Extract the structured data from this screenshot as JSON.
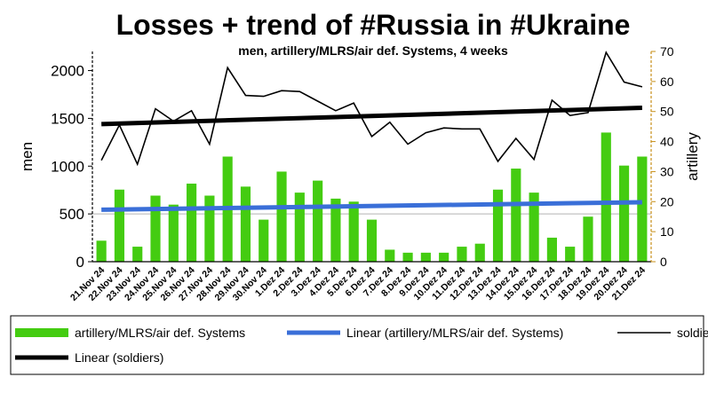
{
  "chart_data": {
    "type": "bar",
    "title": "Losses + trend of #Russia in #Ukraine",
    "subtitle": "men, artillery/MLRS/air def. Systems, 4 weeks",
    "ylabel": "men",
    "y2label": "artillery",
    "ylim": [
      0,
      2200
    ],
    "y2lim": [
      0,
      70
    ],
    "yticks": [
      0,
      500,
      1000,
      1500,
      2000
    ],
    "y2ticks": [
      0,
      10,
      20,
      30,
      40,
      50,
      60,
      70
    ],
    "grid": "horizontal at 500",
    "legend_position": "bottom",
    "categories": [
      "21.Nov 24",
      "22.Nov 24",
      "23.Nov 24",
      "24.Nov 24",
      "25.Nov 24",
      "26.Nov 24",
      "27.Nov 24",
      "28.Nov 24",
      "29.Nov 24",
      "30.Nov 24",
      "1.Dez 24",
      "2.Dez 24",
      "3.Dez 24",
      "4.Dez 24",
      "5.Dez 24",
      "6.Dez 24",
      "7.Dez 24",
      "8.Dez 24",
      "9.Dez 24",
      "10.Dez 24",
      "11.Dez 24",
      "12.Dez 24",
      "13.Dez 24",
      "14.Dez 24",
      "15.Dez 24",
      "16.Dez 24",
      "17.Dez 24",
      "18.Dez 24",
      "19.Dez 24",
      "20.Dez 24",
      "21.Dez 24"
    ],
    "series": [
      {
        "name": "artillery/MLRS/air def. Systems",
        "type": "bar",
        "axis": "right",
        "color": "#44cc11",
        "values": [
          7,
          24,
          5,
          22,
          19,
          26,
          22,
          35,
          25,
          14,
          30,
          23,
          27,
          21,
          20,
          14,
          4,
          3,
          3,
          3,
          5,
          6,
          24,
          31,
          23,
          8,
          5,
          15,
          43,
          32,
          35
        ]
      },
      {
        "name": "Linear (artillery/MLRS/air def. Systems)",
        "type": "trend",
        "axis": "right",
        "color": "#3a6fd8",
        "start": 17.3,
        "end": 19.8
      },
      {
        "name": "soldiers",
        "type": "line",
        "axis": "left",
        "color": "#000000",
        "values": [
          1060,
          1430,
          1020,
          1600,
          1470,
          1580,
          1230,
          2030,
          1740,
          1730,
          1790,
          1780,
          1680,
          1580,
          1660,
          1310,
          1460,
          1230,
          1350,
          1400,
          1390,
          1390,
          1050,
          1290,
          1070,
          1690,
          1530,
          1560,
          2190,
          1880,
          1830
        ]
      },
      {
        "name": "Linear (soldiers)",
        "type": "trend",
        "axis": "left",
        "color": "#000000",
        "start": 1440,
        "end": 1610
      }
    ]
  },
  "legend": [
    {
      "label": "artillery/MLRS/air def. Systems",
      "style": "bar",
      "color": "#44cc11"
    },
    {
      "label": "Linear (artillery/MLRS/air def. Systems)",
      "style": "thick-line",
      "color": "#3a6fd8"
    },
    {
      "label": "soldiers",
      "style": "thin-line",
      "color": "#000000"
    },
    {
      "label": "Linear (soldiers)",
      "style": "thick-line",
      "color": "#000000"
    }
  ]
}
